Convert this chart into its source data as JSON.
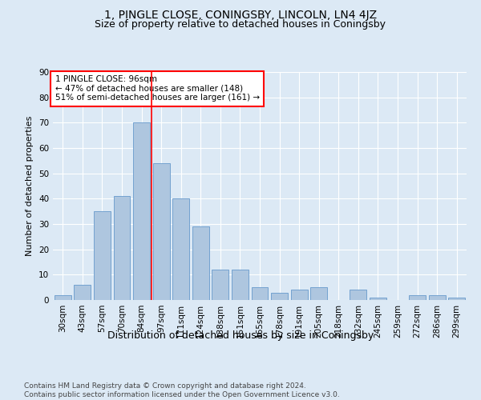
{
  "title": "1, PINGLE CLOSE, CONINGSBY, LINCOLN, LN4 4JZ",
  "subtitle": "Size of property relative to detached houses in Coningsby",
  "xlabel": "Distribution of detached houses by size in Coningsby",
  "ylabel": "Number of detached properties",
  "categories": [
    "30sqm",
    "43sqm",
    "57sqm",
    "70sqm",
    "84sqm",
    "97sqm",
    "111sqm",
    "124sqm",
    "138sqm",
    "151sqm",
    "165sqm",
    "178sqm",
    "191sqm",
    "205sqm",
    "218sqm",
    "232sqm",
    "245sqm",
    "259sqm",
    "272sqm",
    "286sqm",
    "299sqm"
  ],
  "values": [
    2,
    6,
    35,
    41,
    70,
    54,
    40,
    29,
    12,
    12,
    5,
    3,
    4,
    5,
    0,
    4,
    1,
    0,
    2,
    2,
    1
  ],
  "bar_color": "#aec6df",
  "bar_edge_color": "#6699cc",
  "background_color": "#dce9f5",
  "plot_bg_color": "#dce9f5",
  "vline_color": "red",
  "annotation_text": "1 PINGLE CLOSE: 96sqm\n← 47% of detached houses are smaller (148)\n51% of semi-detached houses are larger (161) →",
  "annotation_box_color": "white",
  "annotation_box_edge": "red",
  "ylim": [
    0,
    90
  ],
  "yticks": [
    0,
    10,
    20,
    30,
    40,
    50,
    60,
    70,
    80,
    90
  ],
  "footer": "Contains HM Land Registry data © Crown copyright and database right 2024.\nContains public sector information licensed under the Open Government Licence v3.0.",
  "title_fontsize": 10,
  "subtitle_fontsize": 9,
  "xlabel_fontsize": 9,
  "ylabel_fontsize": 8,
  "tick_fontsize": 7.5,
  "annotation_fontsize": 7.5,
  "footer_fontsize": 6.5
}
